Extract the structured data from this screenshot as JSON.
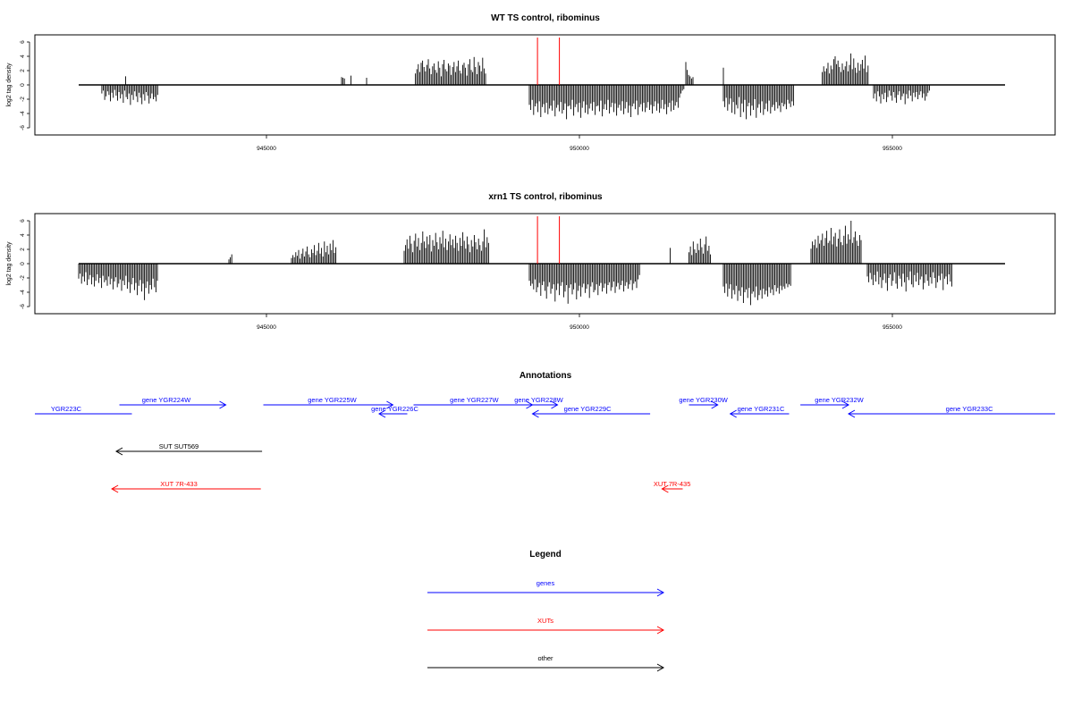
{
  "chart_data": [
    {
      "type": "bar",
      "title": "WT TS control, ribominus",
      "ylabel": "log2 tag density",
      "xlim": [
        941300,
        957600
      ],
      "ylim": [
        -7,
        7
      ],
      "xticks": [
        945000,
        950000,
        955000
      ],
      "yticks": [
        -6,
        -4,
        -2,
        0,
        2,
        4,
        6
      ],
      "baseline_extent": [
        942000,
        956800
      ],
      "markers": [
        949330,
        949680
      ],
      "marker_color": "#ff0000",
      "grid": false,
      "pos_regions": [
        {
          "x": 942750,
          "v": [
            1.2
          ]
        },
        {
          "x": 946200,
          "v": [
            1.1,
            1.0,
            0.9
          ]
        },
        {
          "x": 946350,
          "v": [
            1.3
          ]
        },
        {
          "x": 946600,
          "v": [
            1.0
          ]
        },
        {
          "x": 947380,
          "v": [
            1.6,
            2.2,
            2.9,
            1.8,
            3.1,
            3.4,
            2.5,
            1.9,
            2.8,
            3.6,
            2.3,
            1.5,
            2.6,
            3.0,
            2.1,
            1.7,
            3.3,
            2.4,
            1.2,
            2.9,
            3.5,
            2.2,
            1.9,
            3.0,
            2.7,
            1.4,
            2.5,
            3.2,
            1.8,
            2.6,
            3.4,
            2.0,
            1.6,
            2.8,
            3.1,
            2.4,
            1.3,
            2.9,
            3.6,
            2.1,
            1.8,
            3.9,
            2.5,
            1.5,
            3.2,
            2.7,
            1.9,
            3.8,
            2.3,
            1.6
          ]
        },
        {
          "x": 951700,
          "v": [
            3.2,
            2.1,
            1.4,
            1.2,
            0.9,
            1.1
          ]
        },
        {
          "x": 952300,
          "v": [
            2.4
          ]
        },
        {
          "x": 953880,
          "v": [
            1.8,
            2.6,
            1.9,
            2.3,
            3.1,
            1.6,
            2.7,
            2.2,
            3.6,
            4.0,
            2.9,
            3.4,
            2.5,
            1.8,
            3.0,
            2.1,
            2.6,
            3.3,
            1.9,
            2.8,
            4.4,
            2.2,
            3.7,
            2.4,
            1.7,
            3.1,
            2.0,
            2.9,
            3.5,
            2.3,
            4.1,
            1.8,
            2.7
          ]
        }
      ],
      "neg_regions": [
        {
          "x": 942370,
          "v": [
            -1.2,
            -0.8,
            -2.1,
            -1.6,
            -0.9,
            -1.4,
            -2.3,
            -1.1,
            -1.8,
            -0.7,
            -1.5,
            -2.2,
            -1.0,
            -1.9,
            -1.3,
            -2.5,
            -0.8,
            -1.7,
            -2.0,
            -1.2,
            -2.8,
            -1.4,
            -2.1,
            -0.9,
            -1.6,
            -2.4,
            -1.1,
            -1.8,
            -2.7,
            -1.3,
            -2.2,
            -1.0,
            -1.5,
            -2.6,
            -1.9,
            -1.2,
            -2.0,
            -1.7,
            -2.3,
            -1.4
          ]
        },
        {
          "x": 949200,
          "v": [
            -2.8,
            -3.5,
            -2.1,
            -4.2,
            -3.0,
            -2.6,
            -3.8,
            -2.3,
            -4.5,
            -3.1,
            -2.7,
            -3.9,
            -2.5,
            -4.1,
            -3.3,
            -2.9,
            -3.6,
            -2.2,
            -4.4,
            -3.2,
            -2.8,
            -3.7,
            -2.4,
            -4.0,
            -3.5,
            -2.6,
            -4.8,
            -3.0,
            -2.9,
            -3.4,
            -2.1,
            -4.3,
            -3.1,
            -2.7,
            -3.8,
            -2.5,
            -4.6,
            -3.2,
            -2.3,
            -3.9,
            -2.8,
            -4.1,
            -3.3,
            -2.6,
            -3.6,
            -2.4,
            -4.2,
            -3.0,
            -2.9,
            -3.7,
            -2.2,
            -4.4,
            -3.4,
            -2.7,
            -3.5,
            -2.1,
            -4.0,
            -3.1,
            -2.5,
            -3.8,
            -2.6,
            -4.3,
            -3.2,
            -2.8,
            -3.6,
            -2.3,
            -4.1,
            -3.3,
            -2.4,
            -3.9,
            -2.9,
            -4.5,
            -3.0,
            -2.6,
            -3.4,
            -2.2,
            -4.2,
            -3.1,
            -2.7,
            -3.7,
            -2.5,
            -3.8,
            -3.2,
            -2.4,
            -3.5,
            -2.8,
            -4.0,
            -3.0,
            -2.3,
            -3.6,
            -2.6,
            -3.9,
            -3.3,
            -2.1,
            -3.4,
            -2.7,
            -4.1,
            -3.1,
            -2.5,
            -3.7,
            -2.2,
            -3.5,
            -2.9,
            -2.4,
            -3.2,
            -1.8,
            -1.2,
            -0.8,
            -0.6
          ]
        },
        {
          "x": 952300,
          "v": [
            -2.3,
            -3.1,
            -1.8,
            -3.6,
            -2.7,
            -1.9,
            -3.9,
            -2.4,
            -4.1,
            -2.8,
            -3.3,
            -1.7,
            -4.5,
            -2.6,
            -3.8,
            -2.1,
            -4.8,
            -3.0,
            -2.5,
            -4.3,
            -2.9,
            -3.5,
            -2.0,
            -4.6,
            -3.2,
            -2.7,
            -3.9,
            -2.3,
            -4.2,
            -3.4,
            -2.6,
            -3.7,
            -2.2,
            -4.0,
            -3.1,
            -2.8,
            -3.6,
            -2.4,
            -3.3,
            -2.9,
            -3.8,
            -2.5,
            -3.0,
            -2.7,
            -3.4,
            -2.1,
            -2.6,
            -3.1,
            -2.3,
            -2.9
          ]
        },
        {
          "x": 954700,
          "v": [
            -1.9,
            -1.2,
            -2.3,
            -0.9,
            -1.6,
            -2.6,
            -1.3,
            -2.0,
            -1.1,
            -2.4,
            -1.7,
            -0.8,
            -1.5,
            -2.2,
            -1.0,
            -1.8,
            -2.5,
            -1.4,
            -0.9,
            -2.1,
            -1.6,
            -1.2,
            -2.7,
            -1.3,
            -1.9,
            -0.8,
            -1.5,
            -2.3,
            -1.1,
            -1.7,
            -1.0,
            -2.0,
            -1.4,
            -0.9,
            -1.8,
            -1.2,
            -2.2,
            -1.6,
            -1.1,
            -0.8
          ]
        }
      ]
    },
    {
      "type": "bar",
      "title": "xrn1 TS control, ribominus",
      "ylabel": "log2 tag density",
      "xlim": [
        941300,
        957600
      ],
      "ylim": [
        -7,
        7
      ],
      "xticks": [
        945000,
        950000,
        955000
      ],
      "yticks": [
        -6,
        -4,
        -2,
        0,
        2,
        4,
        6
      ],
      "baseline_extent": [
        942000,
        956800
      ],
      "markers": [
        949330,
        949680
      ],
      "marker_color": "#ff0000",
      "grid": false,
      "pos_regions": [
        {
          "x": 944400,
          "v": [
            0.6,
            0.9,
            1.3
          ]
        },
        {
          "x": 945400,
          "v": [
            0.8,
            1.2,
            0.9,
            1.6,
            1.1,
            1.9,
            0.7,
            1.4,
            2.1,
            1.0,
            1.7,
            2.4,
            1.3,
            0.9,
            2.0,
            1.5,
            2.6,
            1.2,
            1.8,
            2.9,
            1.4,
            2.2,
            1.0,
            3.1,
            1.6,
            2.5,
            1.3,
            2.8,
            1.9,
            3.3,
            1.5,
            2.3
          ]
        },
        {
          "x": 947200,
          "v": [
            1.8,
            2.6,
            3.4,
            2.1,
            3.9,
            2.8,
            1.6,
            3.2,
            4.2,
            2.4,
            3.6,
            1.9,
            2.9,
            4.5,
            3.1,
            2.2,
            3.8,
            2.7,
            4.0,
            1.7,
            3.3,
            2.5,
            4.3,
            3.0,
            2.0,
            3.7,
            2.8,
            4.6,
            2.3,
            3.5,
            1.9,
            3.1,
            4.1,
            2.6,
            3.4,
            2.2,
            3.9,
            2.9,
            1.8,
            3.6,
            2.5,
            4.4,
            3.2,
            2.1,
            3.8,
            2.7,
            1.6,
            3.3,
            2.4,
            4.0,
            3.0,
            2.0,
            3.5,
            2.6,
            1.8,
            3.1,
            4.8,
            2.3,
            3.7,
            2.9
          ]
        },
        {
          "x": 951450,
          "v": [
            2.2
          ]
        },
        {
          "x": 951750,
          "v": [
            1.6,
            2.4,
            1.2,
            3.1,
            2.0,
            1.5,
            2.8,
            1.9,
            3.5,
            2.3,
            1.4,
            2.7,
            3.8,
            1.8,
            2.5,
            1.3
          ]
        },
        {
          "x": 953700,
          "v": [
            2.1,
            3.1,
            2.6,
            3.4,
            2.2,
            3.9,
            2.8,
            3.3,
            4.2,
            2.5,
            3.6,
            4.6,
            2.9,
            3.2,
            5.0,
            2.7,
            3.8,
            4.3,
            2.4,
            3.5,
            4.8,
            3.0,
            2.6,
            3.9,
            5.3,
            2.8,
            4.1,
            3.4,
            6.0,
            2.9,
            3.7,
            4.5,
            3.2,
            2.5,
            4.0,
            3.3
          ]
        }
      ],
      "neg_regions": [
        {
          "x": 942000,
          "v": [
            -2.1,
            -1.4,
            -2.8,
            -1.8,
            -2.5,
            -1.2,
            -3.0,
            -2.2,
            -1.6,
            -2.9,
            -1.9,
            -3.2,
            -2.4,
            -1.5,
            -2.7,
            -2.0,
            -3.4,
            -1.7,
            -2.6,
            -2.3,
            -3.1,
            -1.8,
            -2.9,
            -2.1,
            -3.6,
            -2.5,
            -1.9,
            -3.3,
            -2.8,
            -2.2,
            -3.8,
            -2.4,
            -3.0,
            -1.7,
            -3.5,
            -2.6,
            -4.1,
            -2.9,
            -2.0,
            -3.7,
            -2.7,
            -4.4,
            -3.1,
            -2.3,
            -3.9,
            -2.8,
            -5.1,
            -3.4,
            -2.5,
            -4.2,
            -3.0,
            -3.6,
            -2.1,
            -3.3,
            -4.0,
            -2.4
          ]
        },
        {
          "x": 949200,
          "v": [
            -2.4,
            -3.1,
            -2.8,
            -3.6,
            -2.2,
            -4.0,
            -3.3,
            -2.7,
            -4.5,
            -3.0,
            -2.5,
            -3.8,
            -4.9,
            -3.2,
            -2.6,
            -4.2,
            -3.5,
            -2.9,
            -5.3,
            -3.7,
            -2.8,
            -4.4,
            -3.1,
            -2.6,
            -4.7,
            -3.9,
            -3.0,
            -5.6,
            -3.4,
            -2.9,
            -4.3,
            -3.6,
            -2.7,
            -5.0,
            -3.8,
            -3.1,
            -4.6,
            -3.3,
            -2.8,
            -4.1,
            -3.5,
            -2.9,
            -4.8,
            -3.2,
            -2.6,
            -4.0,
            -3.7,
            -2.9,
            -4.4,
            -3.1,
            -2.7,
            -3.9,
            -3.4,
            -2.8,
            -4.2,
            -3.0,
            -2.6,
            -3.8,
            -3.3,
            -2.5,
            -4.1,
            -3.2,
            -2.7,
            -3.6,
            -3.0,
            -2.4,
            -3.9,
            -3.1,
            -2.6,
            -3.5,
            -2.9,
            -2.3,
            -3.7,
            -2.8,
            -2.5,
            -3.4,
            -2.2,
            -1.6
          ]
        },
        {
          "x": 952300,
          "v": [
            -3.2,
            -4.1,
            -2.8,
            -4.6,
            -3.5,
            -2.9,
            -4.9,
            -3.7,
            -4.3,
            -3.1,
            -5.2,
            -3.8,
            -4.5,
            -3.3,
            -5.5,
            -4.0,
            -3.6,
            -4.8,
            -3.4,
            -5.8,
            -4.2,
            -3.9,
            -4.7,
            -3.2,
            -5.1,
            -4.4,
            -3.7,
            -4.9,
            -3.5,
            -4.3,
            -3.8,
            -4.6,
            -3.3,
            -4.1,
            -3.6,
            -4.4,
            -3.0,
            -3.9,
            -3.4,
            -4.2,
            -3.1,
            -3.7,
            -3.2,
            -3.5,
            -2.8,
            -3.3,
            -2.9,
            -3.1
          ]
        },
        {
          "x": 954600,
          "v": [
            -1.8,
            -2.6,
            -1.3,
            -2.2,
            -3.0,
            -1.6,
            -2.5,
            -1.1,
            -2.9,
            -1.9,
            -3.4,
            -2.3,
            -1.4,
            -2.7,
            -3.8,
            -2.0,
            -1.5,
            -3.1,
            -2.4,
            -1.2,
            -2.8,
            -3.5,
            -1.7,
            -2.1,
            -3.2,
            -1.4,
            -2.6,
            -3.9,
            -1.9,
            -2.3,
            -1.1,
            -2.9,
            -3.3,
            -1.6,
            -2.5,
            -1.3,
            -3.0,
            -2.2,
            -1.8,
            -3.6,
            -2.7,
            -1.5,
            -2.4,
            -3.1,
            -1.9,
            -2.8,
            -1.2,
            -2.0,
            -3.4,
            -2.6,
            -1.7,
            -2.3,
            -1.4,
            -3.7,
            -2.1,
            -1.8,
            -2.9,
            -1.5,
            -2.5,
            -3.2
          ]
        }
      ]
    }
  ],
  "annotations": {
    "title": "Annotations",
    "xlim": [
      941300,
      957600
    ],
    "tracks": [
      {
        "label": "YGR223C",
        "color": "#0000ff",
        "start": 941300,
        "end": 942850,
        "row": 0,
        "label_x": 941800,
        "dir": "none"
      },
      {
        "label": "gene YGR224W",
        "color": "#0000ff",
        "start": 942650,
        "end": 944350,
        "row": 1,
        "label_x": 943400,
        "dir": "right"
      },
      {
        "label": "gene YGR225W",
        "color": "#0000ff",
        "start": 944950,
        "end": 947020,
        "row": 1,
        "label_x": 946050,
        "dir": "right"
      },
      {
        "label": "gene YGR226C",
        "color": "#0000ff",
        "start": 946800,
        "end": 947250,
        "row": 0,
        "label_x": 947050,
        "dir": "left"
      },
      {
        "label": "gene YGR227W",
        "color": "#0000ff",
        "start": 947350,
        "end": 949250,
        "row": 1,
        "label_x": 948320,
        "dir": "right"
      },
      {
        "label": "gene YGR228W",
        "color": "#0000ff",
        "start": 949050,
        "end": 949650,
        "row": 1,
        "label_x": 949350,
        "dir": "right"
      },
      {
        "label": "gene YGR229C",
        "color": "#0000ff",
        "start": 949250,
        "end": 951130,
        "row": 0,
        "label_x": 950130,
        "dir": "left"
      },
      {
        "label": "gene YGR230W",
        "color": "#0000ff",
        "start": 951750,
        "end": 952210,
        "row": 1,
        "label_x": 951980,
        "dir": "right"
      },
      {
        "label": "gene YGR231C",
        "color": "#0000ff",
        "start": 952410,
        "end": 953350,
        "row": 0,
        "label_x": 952900,
        "dir": "left"
      },
      {
        "label": "gene YGR232W",
        "color": "#0000ff",
        "start": 953530,
        "end": 954300,
        "row": 1,
        "label_x": 954150,
        "dir": "right"
      },
      {
        "label": "gene YGR233C",
        "color": "#0000ff",
        "start": 954300,
        "end": 957600,
        "row": 0,
        "label_x": 956230,
        "dir": "left"
      },
      {
        "label": "SUT SUT569",
        "color": "#000000",
        "start": 942600,
        "end": 944930,
        "row": 2,
        "label_x": 943600,
        "dir": "left"
      },
      {
        "label": "XUT 7R-433",
        "color": "#ff0000",
        "start": 942530,
        "end": 944910,
        "row": 3,
        "label_x": 943600,
        "dir": "left"
      },
      {
        "label": "XUT 7R-435",
        "color": "#ff0000",
        "start": 951320,
        "end": 951650,
        "row": 3,
        "label_x": 951480,
        "dir": "left"
      }
    ]
  },
  "legend": {
    "title": "Legend",
    "items": [
      {
        "label": "genes",
        "color": "#0000ff"
      },
      {
        "label": "XUTs",
        "color": "#ff0000"
      },
      {
        "label": "other",
        "color": "#000000"
      }
    ]
  }
}
